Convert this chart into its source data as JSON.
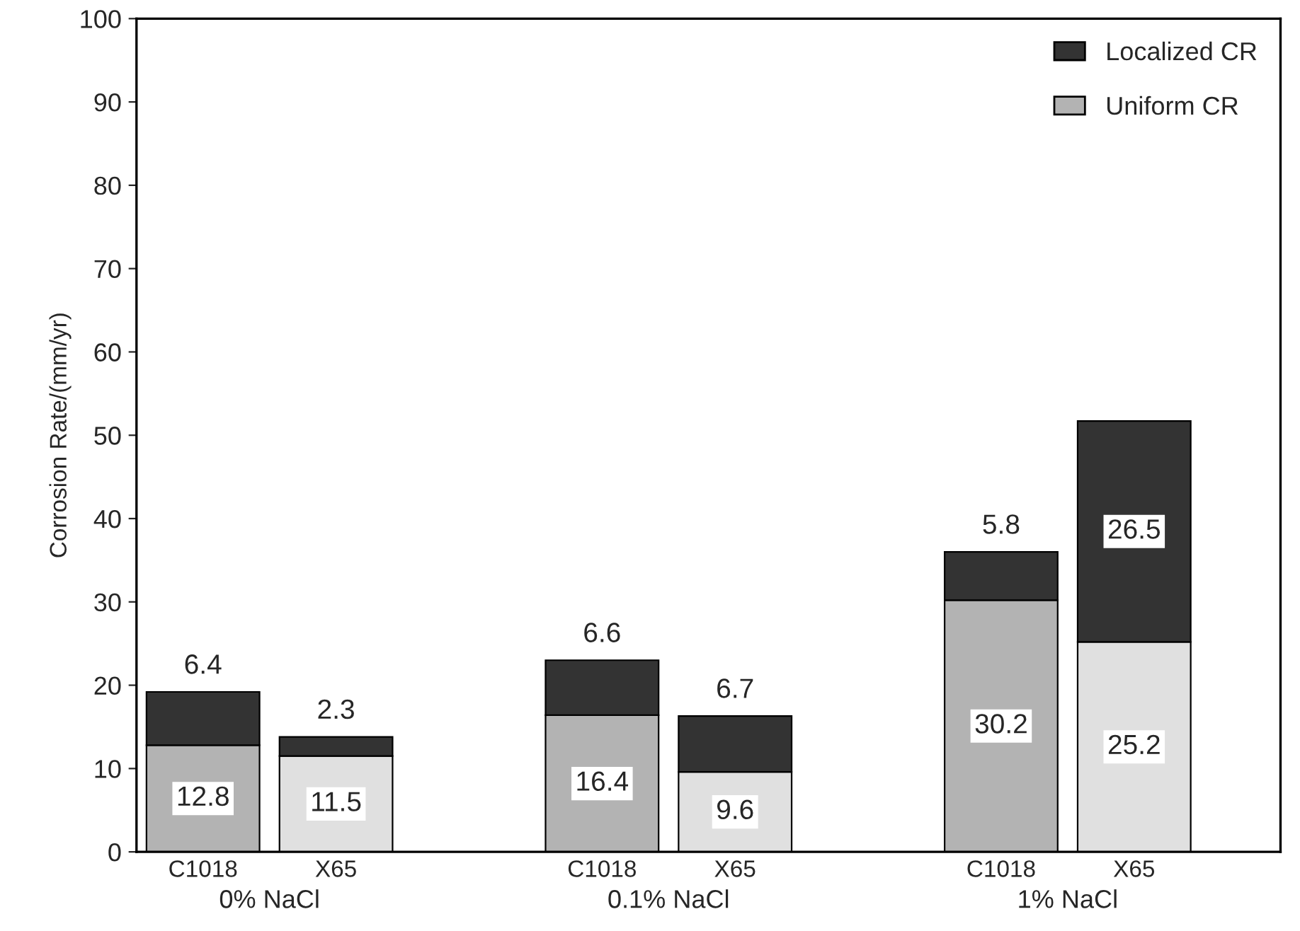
{
  "chart_data": {
    "type": "bar",
    "stacked": true,
    "ylabel": "Corrosion Rate/(mm/yr)",
    "categories": [
      "C1018",
      "X65",
      null,
      "C1018",
      "X65",
      null,
      "C1018",
      "X65"
    ],
    "series": [
      {
        "name": "Uniform CR",
        "color": "#b3b3b3",
        "colors": [
          "#b3b3b3",
          "#e0e0e0",
          null,
          "#b3b3b3",
          "#e0e0e0",
          null,
          "#b3b3b3",
          "#e0e0e0"
        ],
        "values": [
          12.8,
          11.5,
          null,
          16.4,
          9.6,
          null,
          30.2,
          25.2
        ]
      },
      {
        "name": "Localized CR",
        "color": "#333333",
        "values": [
          6.4,
          2.3,
          null,
          6.6,
          6.7,
          null,
          5.8,
          26.5
        ]
      }
    ],
    "annotations": [
      "0% NaCl",
      "0.1% NaCl",
      "1% NaCl"
    ],
    "ylim": [
      0,
      100
    ],
    "yticks": [
      0,
      10,
      20,
      30,
      40,
      50,
      60,
      70,
      80,
      90,
      100
    ],
    "data_labels": true,
    "legend": "top right",
    "grid": false
  }
}
